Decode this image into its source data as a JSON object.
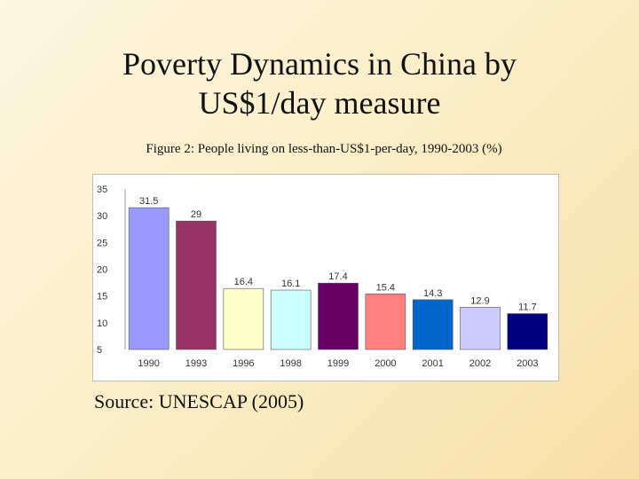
{
  "slide": {
    "title_line1": "Poverty Dynamics in China by",
    "title_line2": "US$1/day measure",
    "figure_caption": "Figure 2:  People living on less-than-US$1-per-day, 1990-2003 (%)",
    "source": "Source: UNESCAP (2005)"
  },
  "chart_data": {
    "type": "bar",
    "title": "",
    "xlabel": "",
    "ylabel": "",
    "categories": [
      "1990",
      "1993",
      "1996",
      "1998",
      "1999",
      "2000",
      "2001",
      "2002",
      "2003"
    ],
    "values": [
      31.5,
      29,
      16.4,
      16.1,
      17.4,
      15.4,
      14.3,
      12.9,
      11.7
    ],
    "value_labels": [
      "31.5",
      "29",
      "16.4",
      "16.1",
      "17.4",
      "15.4",
      "14.3",
      "12.9",
      "11.7"
    ],
    "ylim": [
      5,
      35
    ],
    "yticks": [
      "5",
      "10",
      "15",
      "20",
      "25",
      "30",
      "35"
    ],
    "bar_colors": [
      "#9999ff",
      "#993366",
      "#ffffcc",
      "#ccffff",
      "#660066",
      "#ff8080",
      "#0066cc",
      "#ccccff",
      "#000080"
    ],
    "grid": false,
    "legend": "none"
  }
}
